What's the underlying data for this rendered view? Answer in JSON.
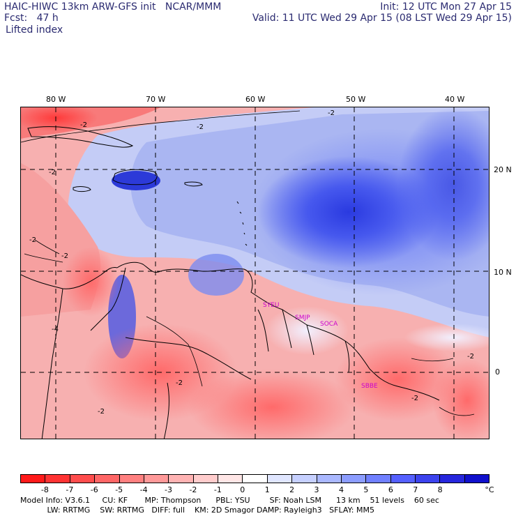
{
  "header": {
    "left_line1": "HAIC-HIWC 13km ARW-GFS init   NCAR/MMM",
    "left_line2": "Fcst:   47 h",
    "left_line3": "Lifted index",
    "right_line1": "Init: 12 UTC Mon 27 Apr 15",
    "right_line2": "Valid: 11 UTC Wed 29 Apr 15 (08 LST Wed 29 Apr 15)"
  },
  "map": {
    "lon_labels": [
      "80 W",
      "70 W",
      "60 W",
      "50 W",
      "40 W"
    ],
    "lat_labels": [
      "20 N",
      "10 N",
      "0"
    ],
    "contour_labels": [
      "-2",
      "-2",
      "-2",
      "-2",
      "-4",
      "-2",
      "-2",
      "-2",
      "-2",
      "-2",
      "-2"
    ],
    "station_labels": [
      "SYEU",
      "SMJP",
      "SOCA",
      "SBBE"
    ],
    "station_color": "#cc00cc"
  },
  "colorbar": {
    "colors": [
      "#ff1a1a",
      "#ff3333",
      "#ff4d4d",
      "#ff6666",
      "#ff8080",
      "#ff9999",
      "#ffb3b3",
      "#ffcccc",
      "#ffe6e6",
      "#ffffff",
      "#e0e6ff",
      "#c6d0ff",
      "#aab8ff",
      "#8c9dff",
      "#7080ff",
      "#5560ff",
      "#3c43ee",
      "#2626dd",
      "#1010cc"
    ],
    "ticks": [
      "-8",
      "-7",
      "-6",
      "-5",
      "-4",
      "-3",
      "-2",
      "-1",
      "0",
      "1",
      "2",
      "3",
      "4",
      "5",
      "6",
      "7",
      "8"
    ],
    "unit": "°C"
  },
  "model_info": {
    "line1": "Model Info: V3.6.1     CU: KF       MP: Thompson      PBL: YSU        SF: Noah LSM      13 km    51 levels    60 sec",
    "line2": "           LW: RRTMG    SW: RRTMG   DIFF: full    KM: 2D Smagor DAMP: Rayleigh3   SFLAY: MM5"
  }
}
